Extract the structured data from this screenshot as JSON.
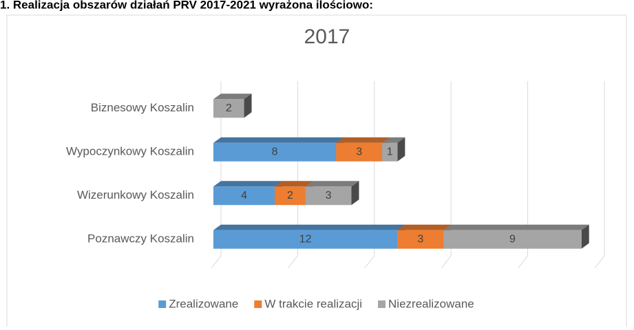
{
  "heading": "1. Realizacja obszarów działań PRV 2017-2021 wyrażona ilościowo:",
  "chart_data": {
    "type": "bar3d-stacked-horizontal",
    "title": "2017",
    "categories": [
      "Biznesowy Koszalin",
      "Wypoczynkowy Koszalin",
      "Wizerunkowy Koszalin",
      "Poznawczy Koszalin"
    ],
    "series": [
      {
        "name": "Zrealizowane",
        "color": "#5b9bd5",
        "values": [
          0,
          8,
          4,
          12
        ]
      },
      {
        "name": "W trakcie realizacji",
        "color": "#ed7d31",
        "values": [
          0,
          3,
          2,
          3
        ]
      },
      {
        "name": "Niezrealizowane",
        "color": "#a5a5a5",
        "values": [
          2,
          1,
          3,
          9
        ]
      }
    ],
    "xlim": [
      0,
      25
    ],
    "xticks": [
      0,
      5,
      10,
      15,
      20,
      25
    ],
    "grid": true,
    "legend": "bottom"
  }
}
